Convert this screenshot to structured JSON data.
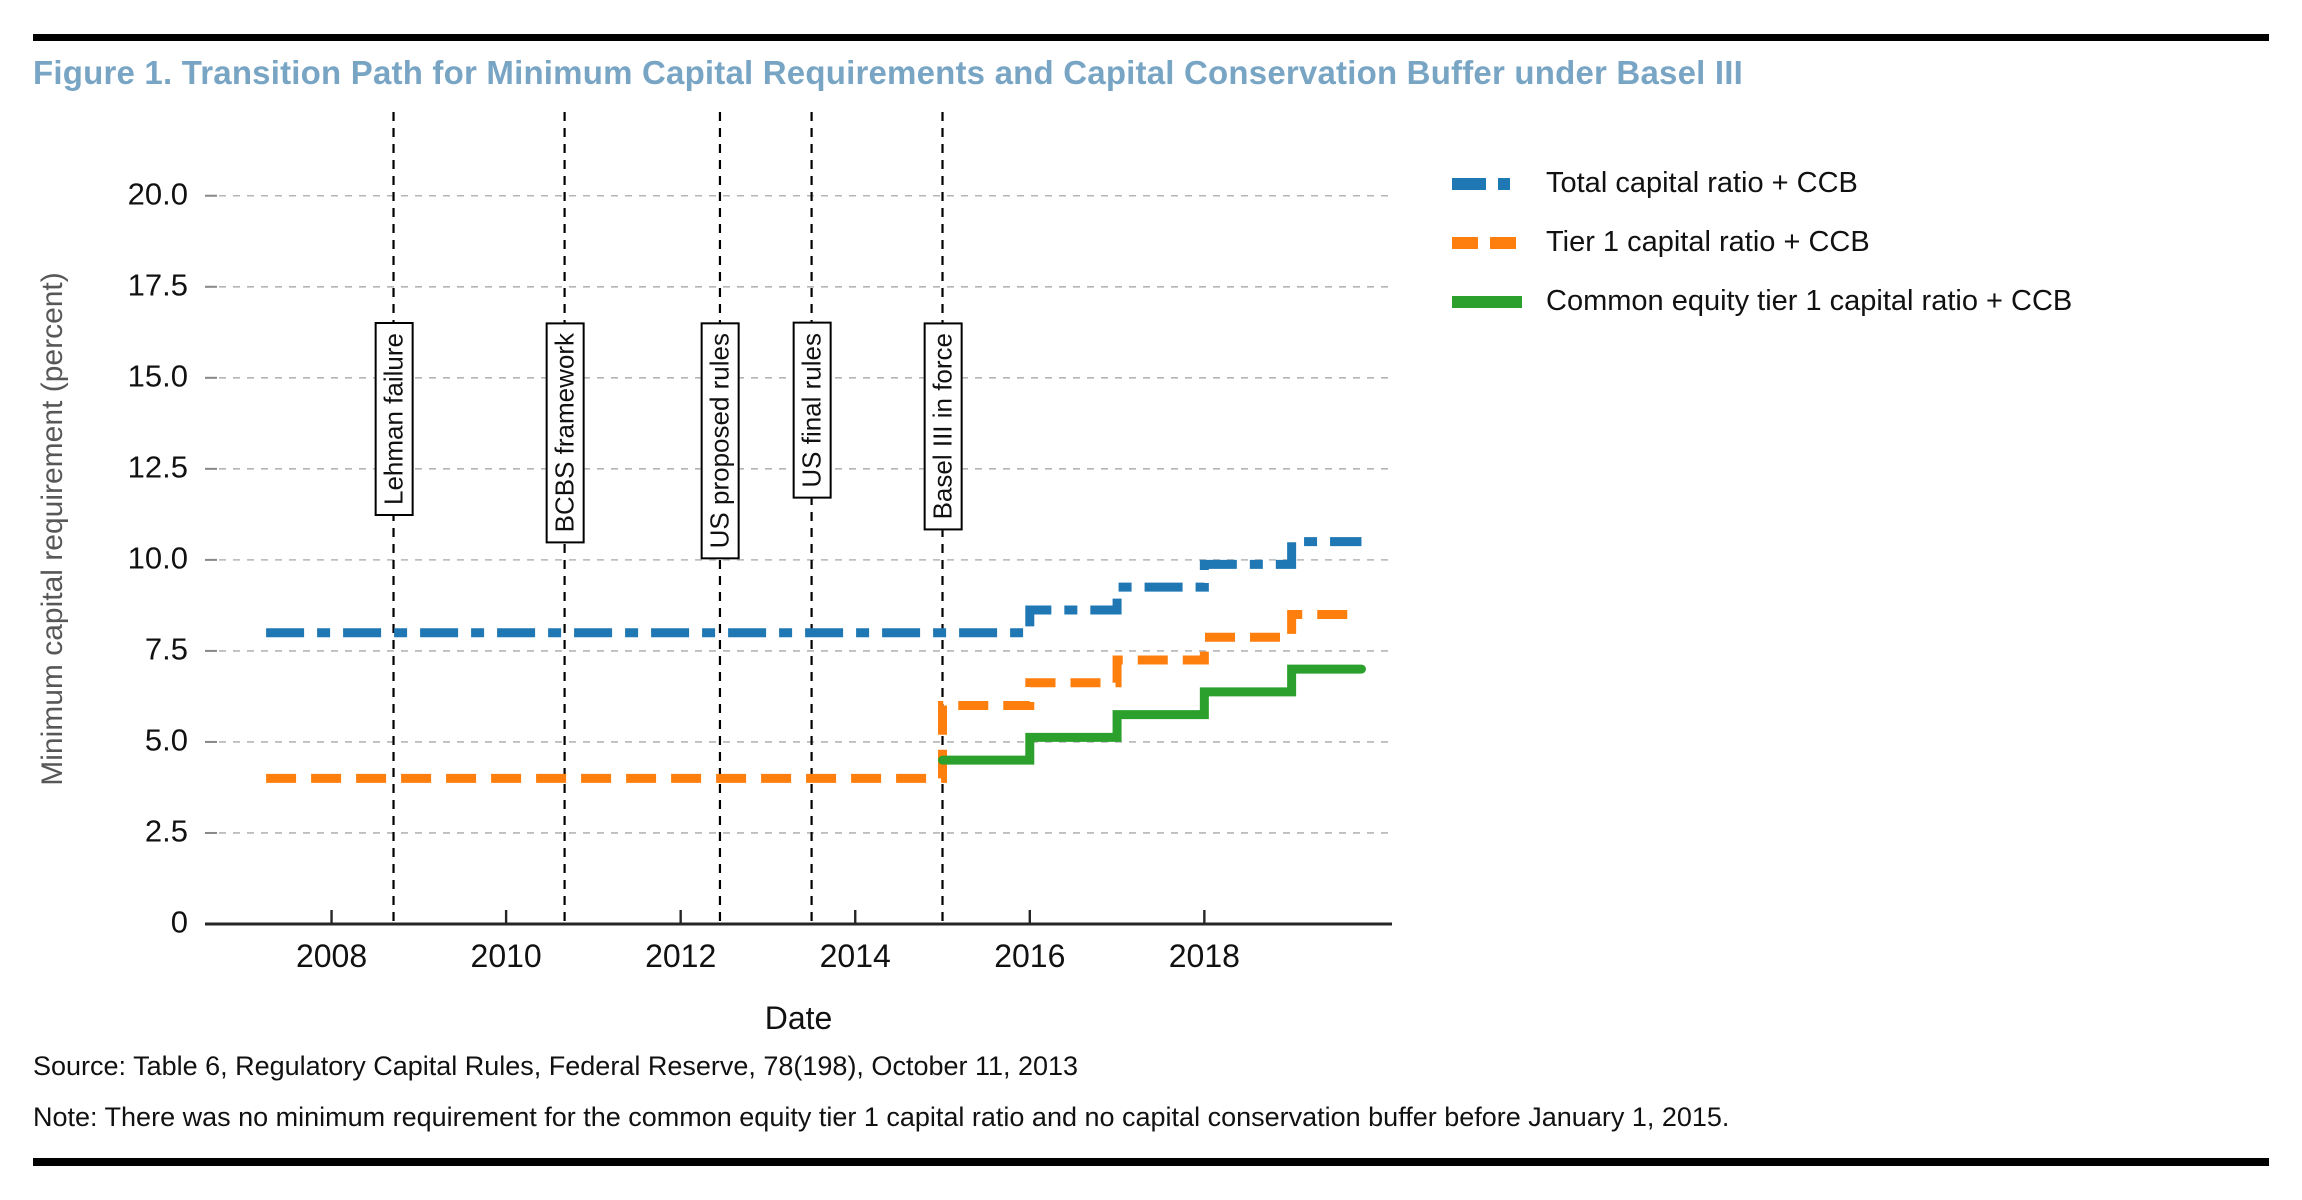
{
  "page": {
    "title": "Figure 1. Transition Path for Minimum Capital Requirements and Capital Conservation Buffer under Basel III",
    "title_color": "#79a5c5"
  },
  "chart_data": {
    "type": "line",
    "title": "Figure 1. Transition Path for Minimum Capital Requirements and Capital Conservation Buffer under Basel III",
    "xlabel": "Date",
    "ylabel": "Minimum capital requirement (percent)",
    "xlim": [
      2006.55,
      2020.15
    ],
    "ylim": [
      0,
      22.3
    ],
    "x_ticks": [
      2008,
      2010,
      2012,
      2014,
      2016,
      2018
    ],
    "y_ticks": [
      0,
      2.5,
      5.0,
      7.5,
      10.0,
      12.5,
      15.0,
      17.5,
      20.0
    ],
    "y_tick_labels": [
      "0",
      "2.5",
      "5.0",
      "7.5",
      "10.0",
      "12.5",
      "15.0",
      "17.5",
      "20.0"
    ],
    "grid": "horizontal dashed gridlines at each y tick",
    "grid_color": "#b5b5b5",
    "axis_color": "#262626",
    "legend_position": "outside upper right",
    "step_mode": "post",
    "series": [
      {
        "name": "Total capital ratio + CCB",
        "color": "#1f77b4",
        "style": "dashdot",
        "points": [
          [
            2007.25,
            8.0
          ],
          [
            2016,
            8.625
          ],
          [
            2017,
            9.25
          ],
          [
            2018,
            9.875
          ],
          [
            2019,
            10.5
          ],
          [
            2019.8,
            10.5
          ]
        ]
      },
      {
        "name": "Tier 1 capital ratio + CCB",
        "color": "#ff7f0e",
        "style": "dashed",
        "points": [
          [
            2007.25,
            4.0
          ],
          [
            2015,
            6.0
          ],
          [
            2016,
            6.625
          ],
          [
            2017,
            7.25
          ],
          [
            2018,
            7.875
          ],
          [
            2019,
            8.5
          ],
          [
            2019.8,
            8.5
          ]
        ]
      },
      {
        "name": "Common equity tier 1 capital ratio + CCB",
        "color": "#2ca02c",
        "style": "solid",
        "points": [
          [
            2015,
            4.5
          ],
          [
            2016,
            5.125
          ],
          [
            2017,
            5.75
          ],
          [
            2018,
            6.375
          ],
          [
            2019,
            7.0
          ],
          [
            2019.8,
            7.0
          ]
        ]
      }
    ],
    "events": [
      {
        "label": "Lehman failure",
        "x": 2008.71
      },
      {
        "label": "BCBS framework",
        "x": 2010.67
      },
      {
        "label": "US proposed rules",
        "x": 2012.45
      },
      {
        "label": "US final rules",
        "x": 2013.5
      },
      {
        "label": "Basel III in force",
        "x": 2015.0
      }
    ]
  },
  "footer": {
    "source": "Source: Table 6, Regulatory Capital Rules, Federal Reserve, 78(198), October 11, 2013",
    "note": "Note: There was no minimum requirement for the common equity tier 1 capital ratio and no capital conservation buffer before January 1, 2015."
  }
}
